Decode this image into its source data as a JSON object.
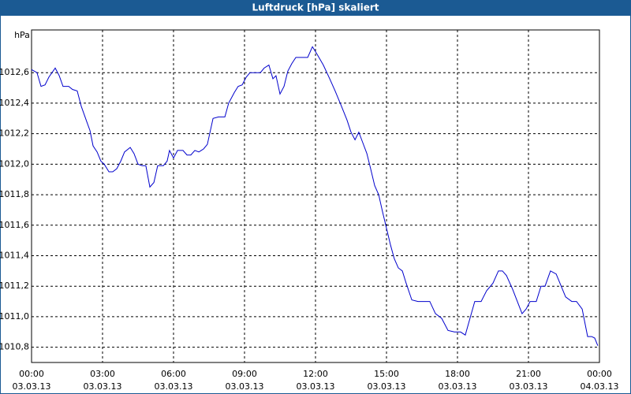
{
  "chart_data": {
    "type": "line",
    "title": "Luftdruck [hPa] skaliert",
    "y_label": "hPa",
    "xlim": [
      0,
      24
    ],
    "ylim": [
      1010.7,
      1012.88
    ],
    "xticks": [
      {
        "value": 0,
        "label": "00:00"
      },
      {
        "value": 3,
        "label": "03:00"
      },
      {
        "value": 6,
        "label": "06:00"
      },
      {
        "value": 9,
        "label": "09:00"
      },
      {
        "value": 12,
        "label": "12:00"
      },
      {
        "value": 15,
        "label": "15:00"
      },
      {
        "value": 18,
        "label": "18:00"
      },
      {
        "value": 21,
        "label": "21:00"
      },
      {
        "value": 24,
        "label": "00:00"
      }
    ],
    "xtick_dates": [
      "03.03.13",
      "03.03.13",
      "03.03.13",
      "03.03.13",
      "03.03.13",
      "03.03.13",
      "03.03.13",
      "03.03.13",
      "04.03.13"
    ],
    "yticks": [
      {
        "value": 1010.8,
        "label": "1010,8"
      },
      {
        "value": 1011,
        "label": "1011,0"
      },
      {
        "value": 1011.2,
        "label": "1011,2"
      },
      {
        "value": 1011.4,
        "label": "1011,4"
      },
      {
        "value": 1011.6,
        "label": "1011,6"
      },
      {
        "value": 1011.8,
        "label": "1011,8"
      },
      {
        "value": 1012,
        "label": "1012,0"
      },
      {
        "value": 1012.2,
        "label": "1012,2"
      },
      {
        "value": 1012.4,
        "label": "1012,4"
      },
      {
        "value": 1012.6,
        "label": "1012,6"
      }
    ],
    "grid": true,
    "x": [
      0,
      0.23,
      0.4,
      0.57,
      0.73,
      1,
      1.17,
      1.33,
      1.57,
      1.73,
      1.93,
      2.1,
      2.33,
      2.47,
      2.6,
      2.77,
      2.93,
      3.07,
      3.27,
      3.43,
      3.6,
      3.77,
      3.93,
      4.17,
      4.33,
      4.5,
      4.67,
      4.83,
      5,
      5.17,
      5.33,
      5.57,
      5.73,
      5.83,
      6,
      6.17,
      6.4,
      6.57,
      6.73,
      6.9,
      7.07,
      7.27,
      7.43,
      7.67,
      7.9,
      8.17,
      8.33,
      8.57,
      8.73,
      8.9,
      9.07,
      9.23,
      9.5,
      9.67,
      9.83,
      10.03,
      10.2,
      10.33,
      10.5,
      10.67,
      10.83,
      11,
      11.17,
      11.4,
      11.67,
      11.87,
      12.07,
      12.33,
      12.6,
      12.83,
      13.07,
      13.33,
      13.5,
      13.67,
      13.83,
      14,
      14.17,
      14.33,
      14.5,
      14.67,
      14.83,
      15,
      15.17,
      15.33,
      15.5,
      15.67,
      15.83,
      16.07,
      16.33,
      16.6,
      16.83,
      17.07,
      17.33,
      17.6,
      17.87,
      18.13,
      18.33,
      18.53,
      18.73,
      19,
      19.23,
      19.5,
      19.73,
      19.9,
      20.07,
      20.33,
      20.53,
      20.73,
      20.9,
      21.07,
      21.33,
      21.53,
      21.7,
      21.93,
      22.17,
      22.33,
      22.57,
      22.83,
      23.03,
      23.27,
      23.5,
      23.67,
      23.8,
      23.93
    ],
    "series": [
      {
        "color": "#0000cc",
        "values": [
          1012.62,
          1012.6,
          1012.51,
          1012.52,
          1012.57,
          1012.63,
          1012.58,
          1012.51,
          1012.51,
          1012.49,
          1012.48,
          1012.38,
          1012.28,
          1012.22,
          1012.12,
          1012.08,
          1012.02,
          1012,
          1011.95,
          1011.95,
          1011.97,
          1012.02,
          1012.08,
          1012.11,
          1012.07,
          1012,
          1011.99,
          1011.99,
          1011.85,
          1011.88,
          1011.99,
          1011.99,
          1012.02,
          1012.09,
          1012.04,
          1012.09,
          1012.09,
          1012.06,
          1012.06,
          1012.09,
          1012.08,
          1012.1,
          1012.13,
          1012.3,
          1012.31,
          1012.31,
          1012.4,
          1012.47,
          1012.51,
          1012.52,
          1012.57,
          1012.6,
          1012.6,
          1012.6,
          1012.63,
          1012.65,
          1012.56,
          1012.58,
          1012.46,
          1012.51,
          1012.61,
          1012.66,
          1012.7,
          1012.7,
          1012.7,
          1012.77,
          1012.72,
          1012.65,
          1012.56,
          1012.48,
          1012.39,
          1012.29,
          1012.21,
          1012.16,
          1012.21,
          1012.14,
          1012.07,
          1011.97,
          1011.86,
          1011.8,
          1011.69,
          1011.58,
          1011.47,
          1011.38,
          1011.32,
          1011.3,
          1011.22,
          1011.11,
          1011.1,
          1011.1,
          1011.1,
          1011.02,
          1010.99,
          1010.91,
          1010.9,
          1010.9,
          1010.88,
          1010.99,
          1011.1,
          1011.1,
          1011.17,
          1011.22,
          1011.3,
          1011.3,
          1011.27,
          1011.18,
          1011.1,
          1011.02,
          1011.05,
          1011.1,
          1011.1,
          1011.2,
          1011.2,
          1011.3,
          1011.28,
          1011.22,
          1011.13,
          1011.1,
          1011.1,
          1011.05,
          1010.87,
          1010.87,
          1010.86,
          1010.81
        ]
      }
    ]
  }
}
